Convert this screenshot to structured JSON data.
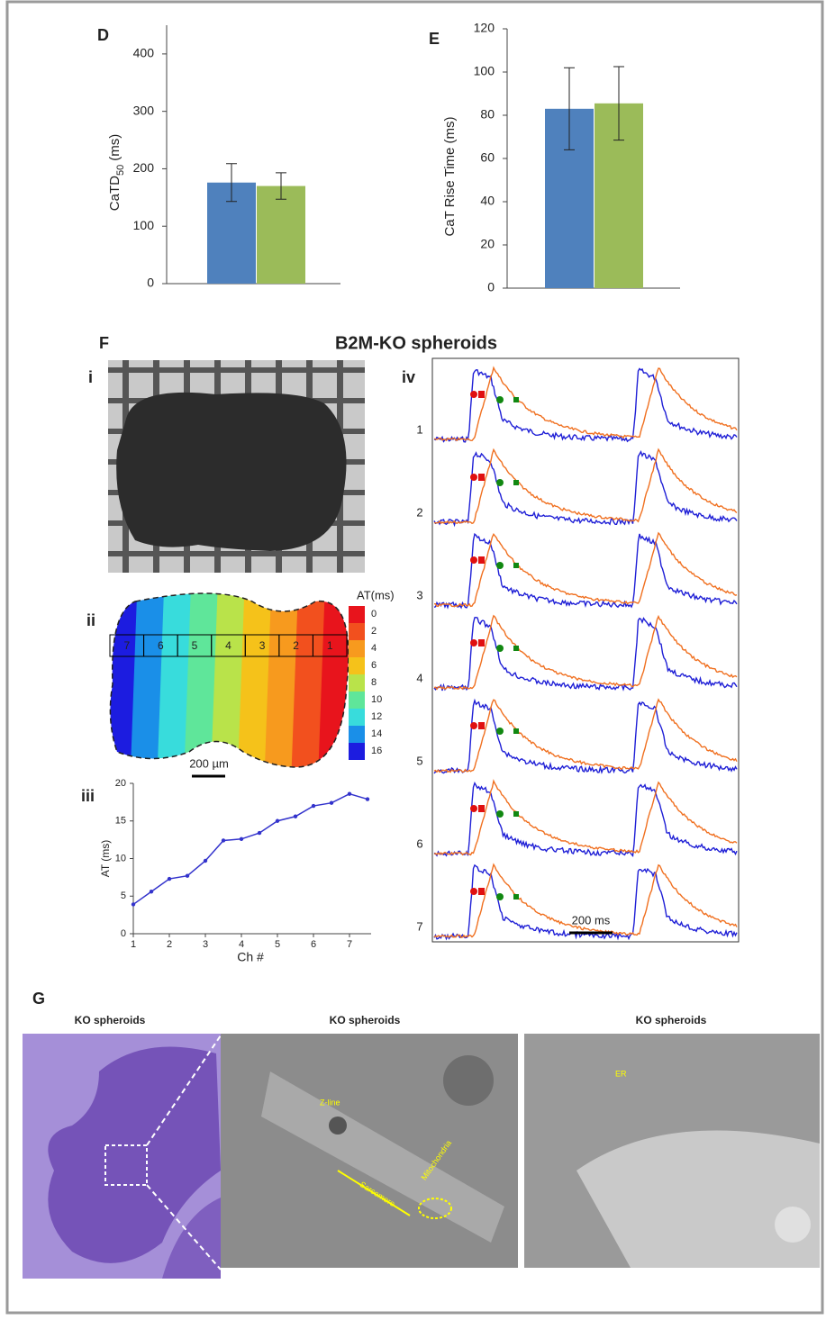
{
  "chart_data": [
    {
      "type": "bar",
      "panel": "D",
      "y_label": {
        "main": "CaTD",
        "sub": "50",
        "unit": "(ms)"
      },
      "series": [
        {
          "color": "#4f81bd",
          "values": [
            176
          ],
          "errors": [
            33
          ]
        },
        {
          "color": "#9bbb59",
          "values": [
            170
          ],
          "errors": [
            23
          ]
        }
      ],
      "ylim": [
        0,
        450
      ],
      "yticks": [
        0,
        100,
        200,
        300,
        400
      ]
    },
    {
      "type": "bar",
      "panel": "E",
      "y_label": "CaT Rise Time (ms)",
      "series": [
        {
          "color": "#4f81bd",
          "values": [
            83
          ],
          "errors": [
            19
          ]
        },
        {
          "color": "#9bbb59",
          "values": [
            85.5
          ],
          "errors": [
            17
          ]
        }
      ],
      "ylim": [
        0,
        120
      ],
      "yticks": [
        0,
        20,
        40,
        60,
        80,
        100,
        120
      ]
    },
    {
      "type": "line",
      "panel": "iii",
      "x_label": "Ch #",
      "y_label": "AT (ms)",
      "color": "#3333cc",
      "x": [
        1,
        1.5,
        2,
        2.5,
        3,
        3.5,
        4,
        4.5,
        5,
        5.5,
        6,
        6.5,
        7,
        7.5
      ],
      "values": [
        3.9,
        5.6,
        7.3,
        7.7,
        9.7,
        12.4,
        12.6,
        13.4,
        15.0,
        15.6,
        17.0,
        17.4,
        18.6,
        17.9
      ],
      "xlim": [
        1,
        7.5
      ],
      "xticks": [
        1,
        2,
        3,
        4,
        5,
        6,
        7
      ],
      "ylim": [
        0,
        20
      ],
      "yticks": [
        0,
        5,
        10,
        15,
        20
      ]
    }
  ],
  "panel_F": {
    "label": "F",
    "title": "B2M-KO spheroids",
    "sub_labels": [
      "i",
      "ii",
      "iv"
    ],
    "colorbar_title": "AT(ms)",
    "colorbar_ticks": [
      0,
      2,
      4,
      6,
      8,
      10,
      12,
      14,
      16
    ],
    "colorbar_colors": [
      "#e8141c",
      "#f2501e",
      "#f79a1e",
      "#f5c21a",
      "#b9e34a",
      "#5fe69a",
      "#38dcdc",
      "#1a8fe8",
      "#1c1ce0"
    ],
    "channels": [
      "7",
      "6",
      "5",
      "4",
      "3",
      "2",
      "1"
    ],
    "scale_bar": "200 µm",
    "trace_labels": [
      "1",
      "2",
      "3",
      "4",
      "5",
      "6",
      "7"
    ],
    "trace_scale": "200 ms"
  },
  "panel_G": {
    "label": "G",
    "titles": [
      "KO spheroids",
      "KO spheroids",
      "KO spheroids"
    ],
    "annotations": [
      "Z-line",
      "Sarcomere",
      "Mitochondria",
      "ER"
    ]
  }
}
